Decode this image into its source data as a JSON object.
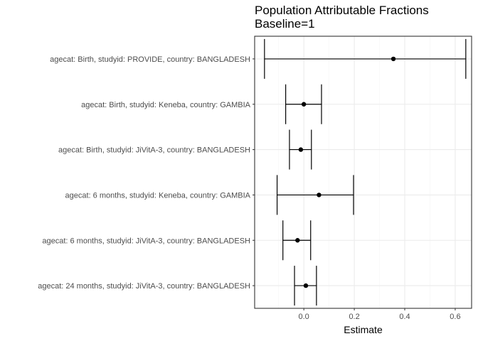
{
  "chart_data": {
    "type": "forest",
    "title": "Population Attributable Fractions",
    "subtitle": "Baseline=1",
    "xlabel": "Estimate",
    "ylabel": "",
    "xlim": [
      -0.195,
      0.665
    ],
    "xticks": [
      {
        "value": 0.0,
        "label": "0.0"
      },
      {
        "value": 0.2,
        "label": "0.2"
      },
      {
        "value": 0.4,
        "label": "0.4"
      },
      {
        "value": 0.6,
        "label": "0.6"
      }
    ],
    "grid": true,
    "categories": [
      "agecat: Birth, studyid: PROVIDE, country: BANGLADESH",
      "agecat: Birth, studyid: Keneba, country: GAMBIA",
      "agecat: Birth, studyid: JiVitA-3, country: BANGLADESH",
      "agecat: 6 months, studyid: Keneba, country: GAMBIA",
      "agecat: 6 months, studyid: JiVitA-3, country: BANGLADESH",
      "agecat: 24 months, studyid: JiVitA-3, country: BANGLADESH"
    ],
    "estimates": [
      0.355,
      0.0,
      -0.012,
      0.06,
      -0.025,
      0.008
    ],
    "lower": [
      -0.156,
      -0.072,
      -0.057,
      -0.106,
      -0.083,
      -0.037
    ],
    "upper": [
      0.642,
      0.07,
      0.03,
      0.197,
      0.027,
      0.05
    ],
    "colors": {
      "panel_border": "#333333",
      "grid_major": "#ebebeb",
      "grid_minor": "#f5f5f5",
      "marks": "#000000",
      "tick_text": "#4d4d4d"
    }
  }
}
